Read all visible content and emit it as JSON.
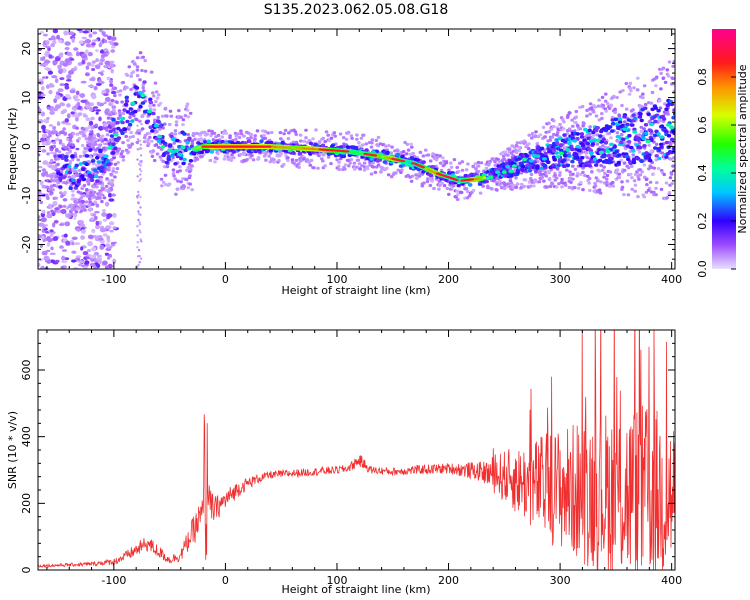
{
  "title": "S135.2023.062.05.08.G18",
  "chart_data": [
    {
      "type": "heatmap",
      "name": "spectrogram",
      "xlabel": "Height of straight line (km)",
      "ylabel": "Frequency (Hz)",
      "xlim": [
        -168,
        403
      ],
      "ylim": [
        -25,
        24
      ],
      "xticks": [
        -100,
        0,
        100,
        200,
        300,
        400
      ],
      "xtick_labels": [
        "-100",
        "0",
        "100",
        "200",
        "300",
        "400"
      ],
      "yticks": [
        -20,
        -10,
        0,
        10,
        20
      ],
      "ytick_labels": [
        "-20",
        "-10",
        "0",
        "10",
        "20"
      ],
      "ridge": {
        "x": [
          -130,
          -110,
          -95,
          -85,
          -75,
          -65,
          -58,
          -50,
          -42,
          -35,
          -28,
          -20,
          0,
          40,
          80,
          110,
          140,
          170,
          190,
          210,
          230,
          260,
          300,
          340,
          380,
          403
        ],
        "y": [
          -5,
          -3,
          4,
          8,
          11,
          6,
          1,
          -1,
          -1.5,
          0.5,
          -0.5,
          0,
          0,
          0,
          -0.5,
          -1,
          -2,
          -3.5,
          -5.5,
          -7,
          -6.5,
          -4,
          -1,
          0.5,
          2.5,
          3.5
        ]
      },
      "colorbar": {
        "label": "Normalized spectral amplitude",
        "range": [
          0,
          1
        ],
        "ticks": [
          0.0,
          0.2,
          0.4,
          0.6,
          0.8
        ],
        "tick_labels": [
          "0.0",
          "0.2",
          "0.4",
          "0.6",
          "0.8"
        ],
        "colormap": "hsv-rainbow (lavender-blue-cyan-green-yellow-red-magenta)"
      }
    },
    {
      "type": "line",
      "name": "snr",
      "xlabel": "Height of straight line (km)",
      "ylabel": "SNR (10 * v/v)",
      "xlim": [
        -168,
        403
      ],
      "ylim": [
        0,
        720
      ],
      "xticks": [
        -100,
        0,
        100,
        200,
        300,
        400
      ],
      "xtick_labels": [
        "-100",
        "0",
        "100",
        "200",
        "300",
        "400"
      ],
      "yticks": [
        0,
        200,
        400,
        600
      ],
      "ytick_labels": [
        "0",
        "200",
        "400",
        "600"
      ],
      "series": [
        {
          "name": "SNR",
          "color": "#f03030",
          "x": [
            -168,
            -120,
            -100,
            -90,
            -80,
            -70,
            -60,
            -50,
            -40,
            -30,
            -25,
            -20,
            -18,
            -15,
            -10,
            0,
            10,
            20,
            30,
            40,
            60,
            80,
            100,
            110,
            120,
            130,
            150,
            170,
            200,
            230,
            250,
            270,
            290,
            310,
            330,
            350,
            370,
            390,
            403
          ],
          "y": [
            12,
            18,
            25,
            40,
            60,
            80,
            55,
            30,
            45,
            110,
            140,
            170,
            160,
            200,
            180,
            210,
            240,
            260,
            275,
            285,
            290,
            295,
            300,
            305,
            330,
            300,
            295,
            300,
            305,
            295,
            280,
            260,
            250,
            240,
            235,
            230,
            225,
            225,
            220
          ],
          "noise_amplitude": [
            4,
            6,
            10,
            15,
            20,
            25,
            20,
            12,
            20,
            40,
            50,
            60,
            200,
            60,
            40,
            30,
            25,
            18,
            14,
            12,
            12,
            12,
            12,
            12,
            20,
            12,
            12,
            14,
            16,
            30,
            80,
            120,
            170,
            200,
            240,
            260,
            280,
            260,
            250
          ]
        }
      ]
    }
  ]
}
